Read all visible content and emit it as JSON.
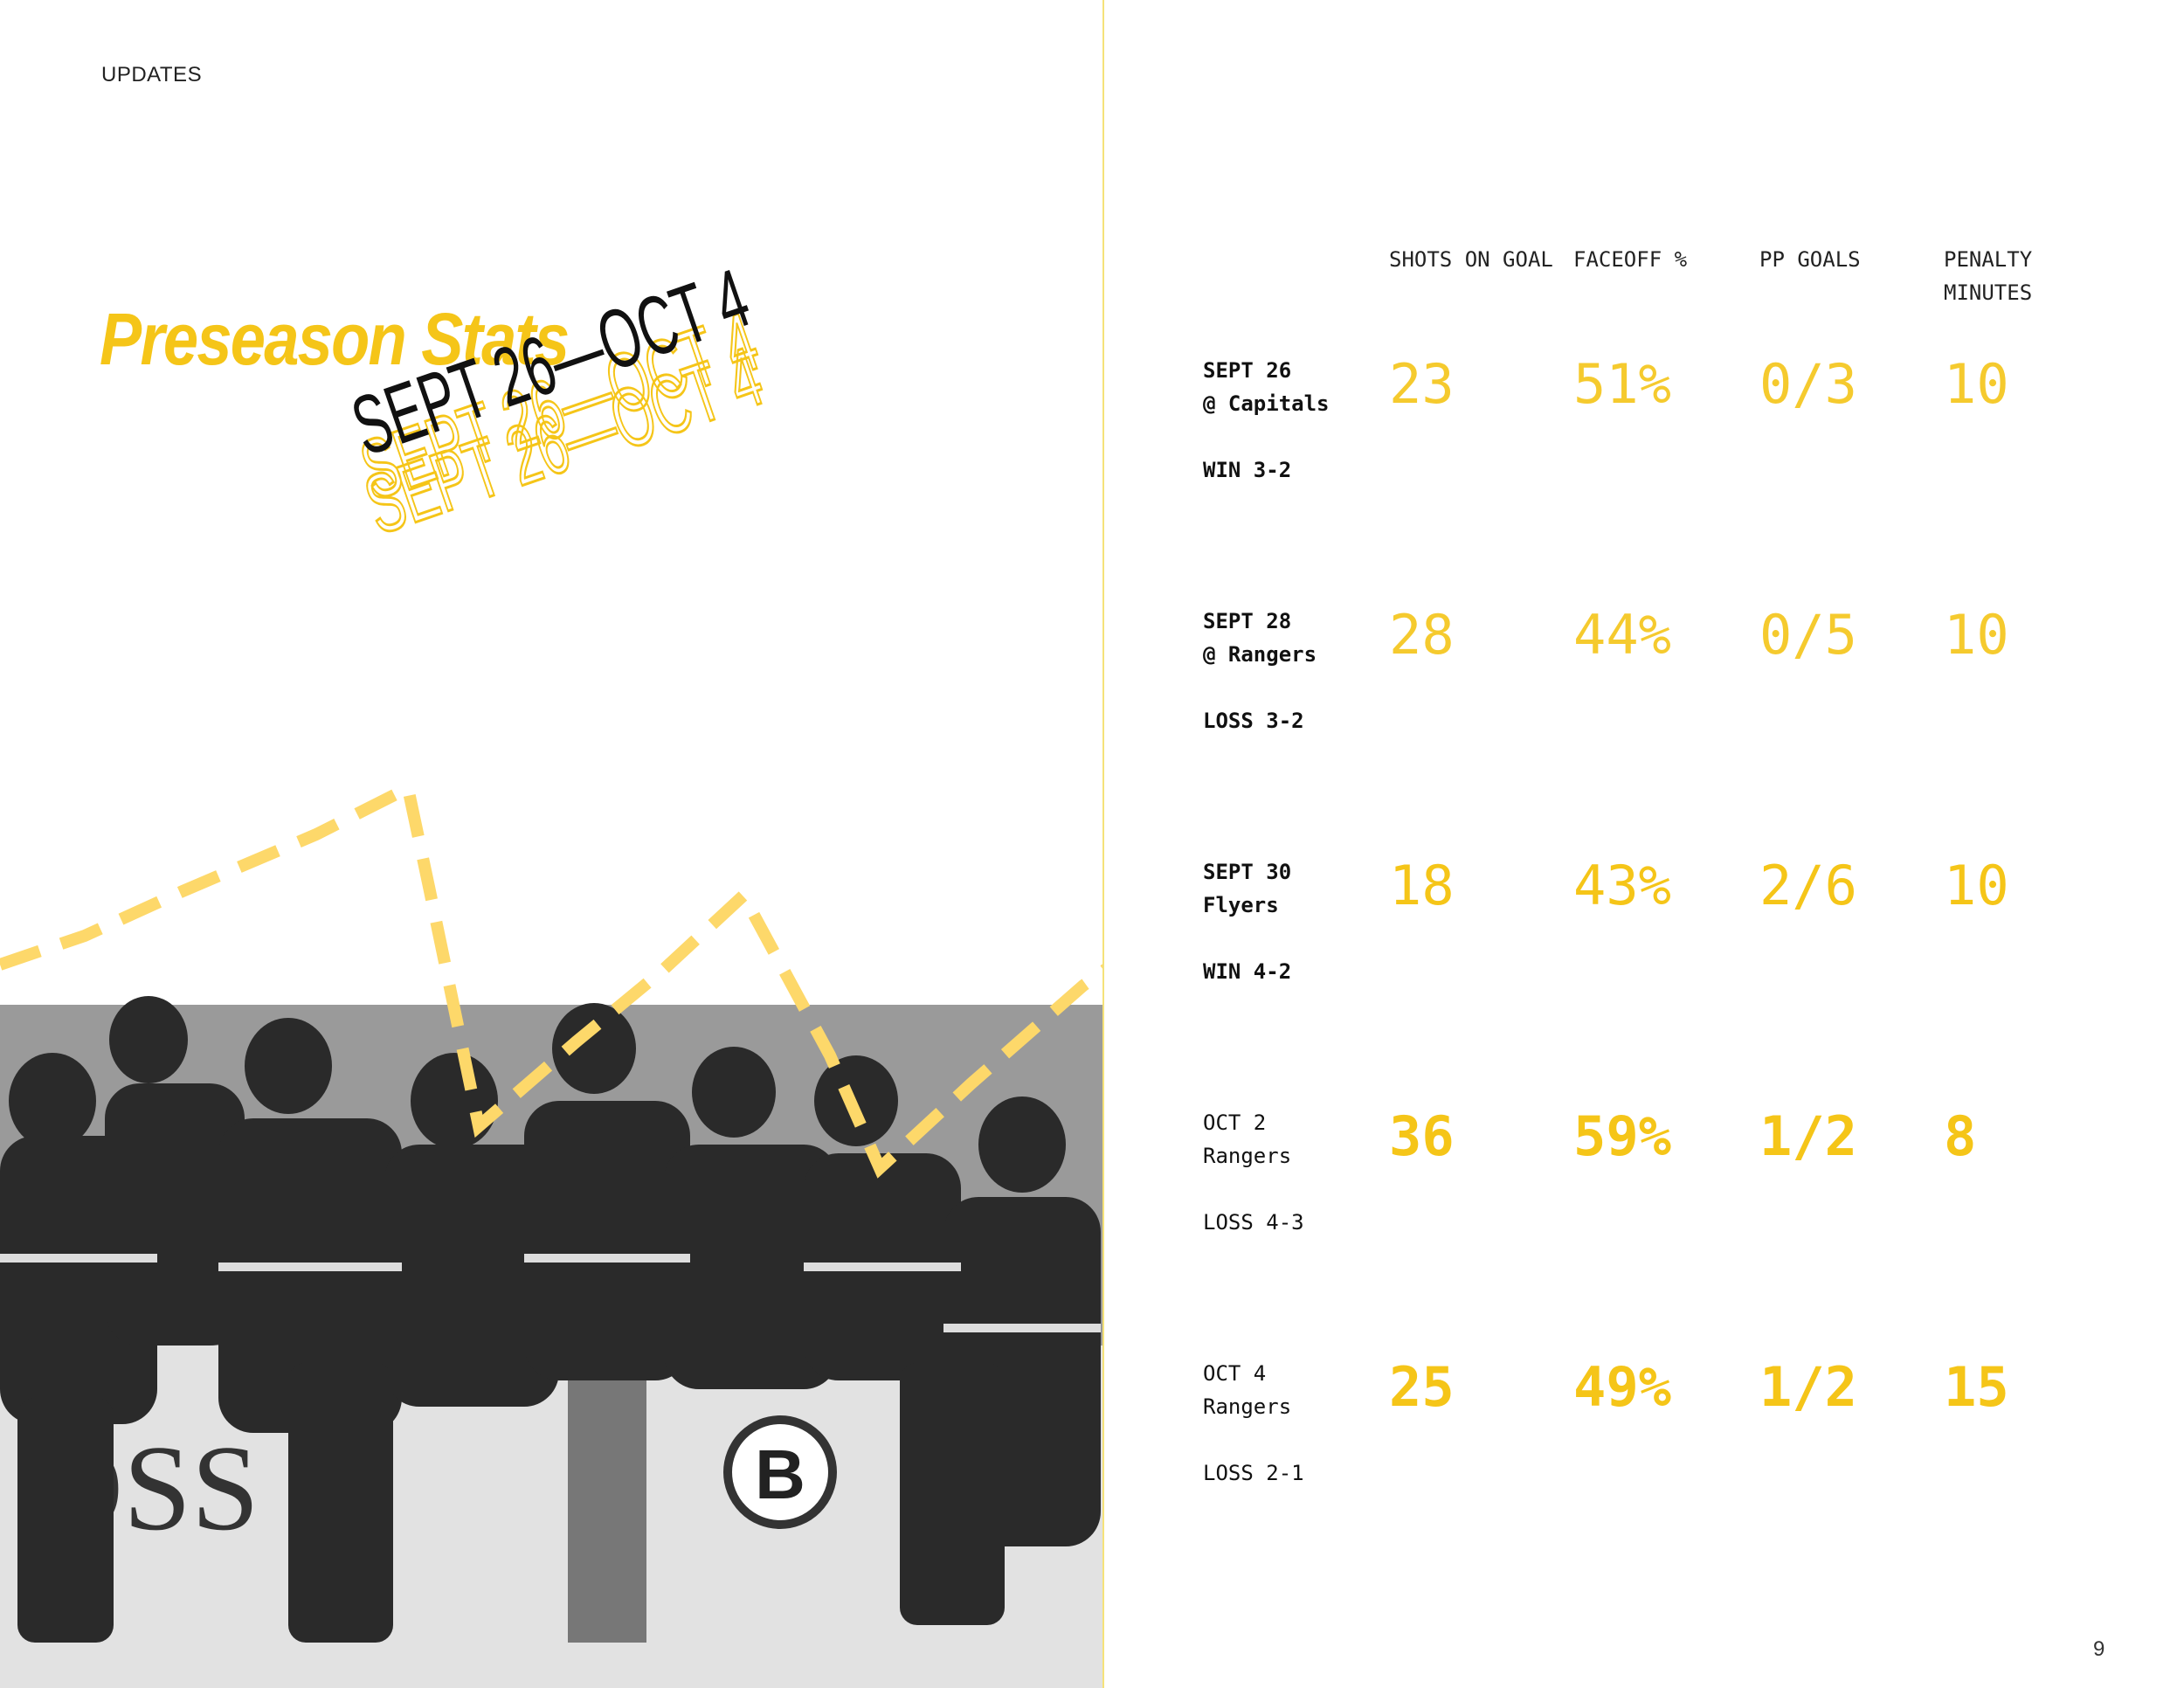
{
  "header": {
    "section": "UPDATES"
  },
  "title": "Preseason Stats",
  "subtitle": "SEPT 26—OCT 4",
  "table": {
    "columns": [
      "SHOTS ON GOAL",
      "FACEOFF %",
      "PP GOALS",
      "PENALTY MINUTES"
    ],
    "rows": [
      {
        "date": "SEPT 26",
        "opponent": "@ Capitals",
        "result": "WIN 3-2",
        "values": [
          "23",
          "51%",
          "0/3",
          "10"
        ]
      },
      {
        "date": "SEPT 28",
        "opponent": "@ Rangers",
        "result": "LOSS 3-2",
        "values": [
          "28",
          "44%",
          "0/5",
          "10"
        ]
      },
      {
        "date": "SEPT 30",
        "opponent": "Flyers",
        "result": "WIN 4-2",
        "values": [
          "18",
          "43%",
          "2/6",
          "10"
        ]
      },
      {
        "date": "OCT 2",
        "opponent": "Rangers",
        "result": "LOSS 4-3",
        "values": [
          "36",
          "59%",
          "1/2",
          "8"
        ]
      },
      {
        "date": "OCT 4",
        "opponent": "Rangers",
        "result": "LOSS 2-1",
        "values": [
          "25",
          "49%",
          "1/2",
          "15"
        ]
      }
    ]
  },
  "page_number": "9"
}
